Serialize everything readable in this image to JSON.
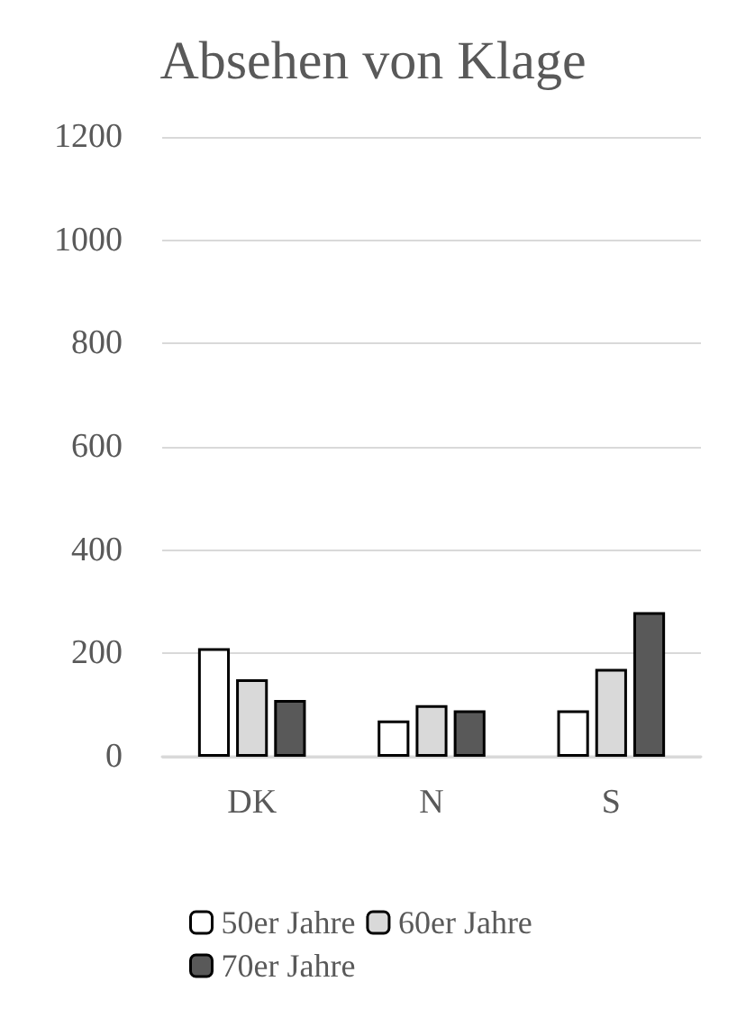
{
  "chart_data": {
    "type": "bar",
    "title": "Absehen von Klage",
    "categories": [
      "DK",
      "N",
      "S"
    ],
    "series": [
      {
        "name": "50er Jahre",
        "color": "#ffffff",
        "values": [
          210,
          70,
          90
        ]
      },
      {
        "name": "60er Jahre",
        "color": "#d9d9d9",
        "values": [
          150,
          100,
          170
        ]
      },
      {
        "name": "70er Jahre",
        "color": "#595959",
        "values": [
          110,
          90,
          280
        ]
      }
    ],
    "ylim": [
      0,
      1200
    ],
    "yticks": [
      0,
      200,
      400,
      600,
      800,
      1000,
      1200
    ],
    "grid": "y",
    "legend": "bottom"
  }
}
